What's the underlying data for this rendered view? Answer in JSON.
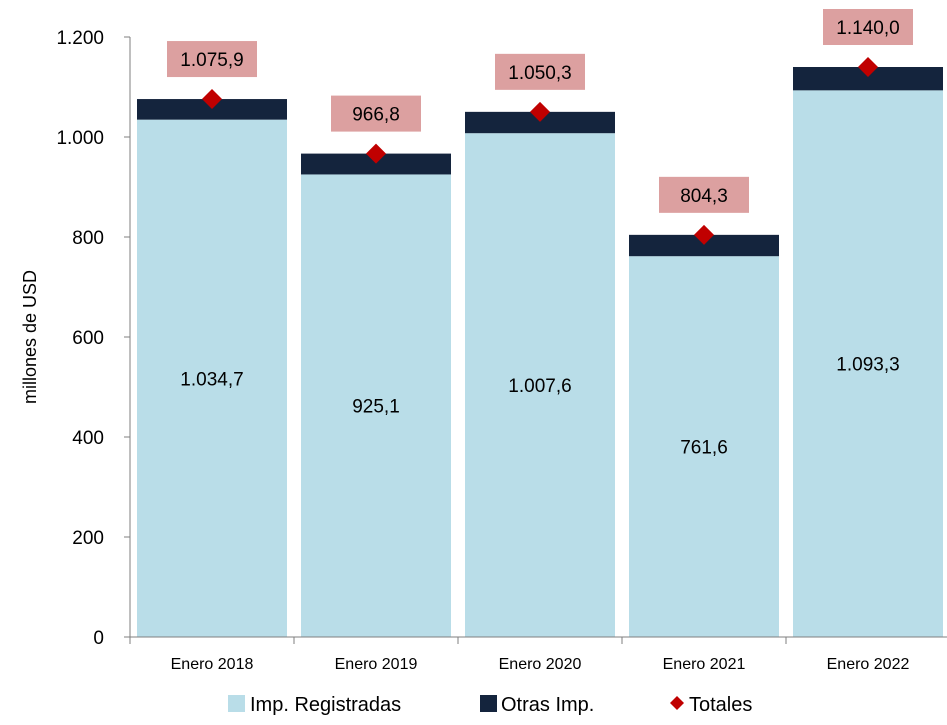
{
  "chart_data": {
    "type": "bar",
    "stacked": true,
    "categories": [
      "Enero 2018",
      "Enero 2019",
      "Enero 2020",
      "Enero 2021",
      "Enero 2022"
    ],
    "series": [
      {
        "name": "Imp. Registradas",
        "values": [
          1034.7,
          925.1,
          1007.6,
          761.6,
          1093.3
        ],
        "labels": [
          "1.034,7",
          "925,1",
          "1.007,6",
          "761,6",
          "1.093,3"
        ],
        "color": "#b9dde8"
      },
      {
        "name": "Otras Imp.",
        "values": [
          41.2,
          41.7,
          42.7,
          42.7,
          46.7
        ],
        "color": "#14243d"
      }
    ],
    "totals": {
      "name": "Totales",
      "values": [
        1075.9,
        966.8,
        1050.3,
        804.3,
        1140.0
      ],
      "labels": [
        "1.075,9",
        "966,8",
        "1.050,3",
        "804,3",
        "1.140,0"
      ],
      "marker_color": "#c00000",
      "label_bg": "#dca0a0"
    },
    "ylabel": "millones de  USD",
    "xlabel": "",
    "ylim": [
      0,
      1200
    ],
    "yticks": [
      0,
      200,
      400,
      600,
      800,
      1000,
      1200
    ],
    "ytick_labels": [
      "0",
      "200",
      "400",
      "600",
      "800",
      "1.000",
      "1.200"
    ],
    "grid": false,
    "legend_position": "bottom"
  }
}
